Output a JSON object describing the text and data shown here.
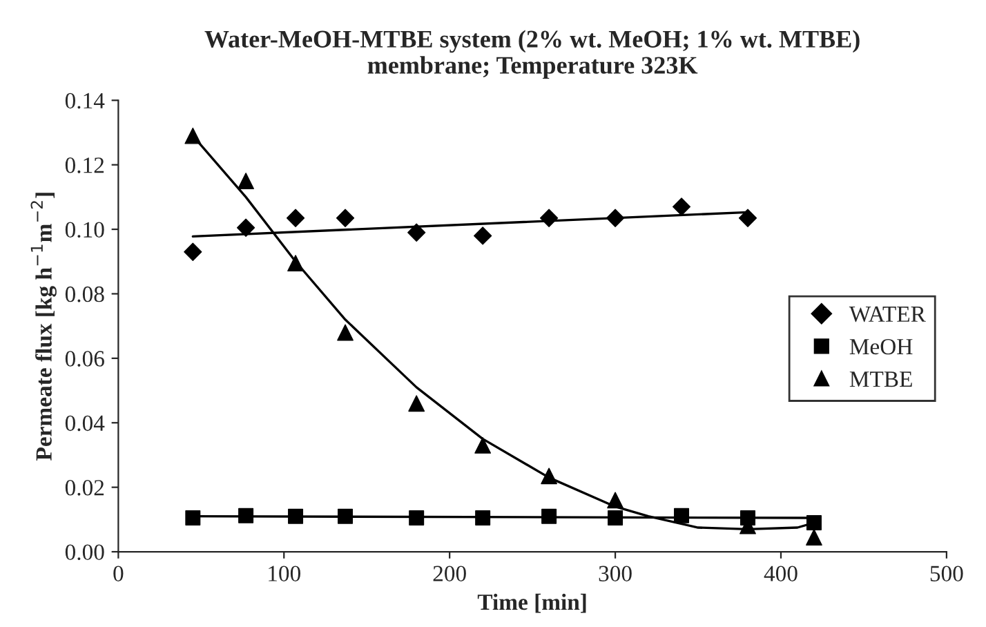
{
  "chart_data": {
    "type": "scatter",
    "title": "Water-MeOH-MTBE system (2% wt. MeOH; 1% wt. MTBE)\nmembrane; Temperature 323K",
    "xlabel": "Time [min]",
    "ylabel": "Permeate flux [kg h$^{−1}$m$^{−2}$]",
    "xlim": [
      0,
      500
    ],
    "xticks": [
      0,
      100,
      200,
      300,
      400,
      500
    ],
    "ylim": [
      0,
      0.14
    ],
    "yticks": [
      {
        "value": 0,
        "label": "0.00"
      },
      {
        "value": 0.02,
        "label": "0.02"
      },
      {
        "value": 0.04,
        "label": "0.04"
      },
      {
        "value": 0.06,
        "label": "0.06"
      },
      {
        "value": 0.08,
        "label": "0.08"
      },
      {
        "value": 0.1,
        "label": "0.10"
      },
      {
        "value": 0.12,
        "label": "0.12"
      },
      {
        "value": 0.14,
        "label": "0.14"
      }
    ],
    "grid": false,
    "legend": "right",
    "series": [
      {
        "name": "WATER",
        "color": "#000000",
        "marker": "diamond",
        "x": [
          45,
          77,
          107,
          137,
          180,
          220,
          260,
          300,
          340,
          380
        ],
        "values": [
          0.093,
          0.1005,
          0.1035,
          0.1035,
          0.099,
          0.098,
          0.1035,
          0.1035,
          0.107,
          0.1035
        ]
      },
      {
        "name": "MeOH",
        "color": "#000000",
        "marker": "square",
        "x": [
          45,
          77,
          107,
          137,
          180,
          220,
          260,
          300,
          340,
          380,
          420
        ],
        "values": [
          0.0105,
          0.0112,
          0.011,
          0.011,
          0.0105,
          0.0105,
          0.011,
          0.0105,
          0.0112,
          0.0105,
          0.009
        ]
      },
      {
        "name": "MTBE",
        "color": "#000000",
        "marker": "triangle",
        "x": [
          45,
          77,
          107,
          137,
          180,
          220,
          260,
          300,
          380,
          420
        ],
        "values": [
          0.129,
          0.115,
          0.0895,
          0.068,
          0.046,
          0.033,
          0.0235,
          0.016,
          0.008,
          0.0045
        ]
      },
      {
        "type": "line",
        "color": "#000000",
        "marker": "none",
        "line_style": "solid",
        "x": [
          45,
          380
        ],
        "values": [
          0.0978,
          0.1053
        ]
      },
      {
        "type": "line",
        "color": "#000000",
        "marker": "none",
        "line_style": "solid",
        "x": [
          45,
          420
        ],
        "values": [
          0.011,
          0.0105
        ]
      },
      {
        "type": "line",
        "color": "#000000",
        "marker": "none",
        "line_style": "solid",
        "x": [
          45,
          77,
          107,
          137,
          180,
          220,
          260,
          300,
          320,
          350,
          380,
          410,
          420
        ],
        "values": [
          0.129,
          0.11,
          0.09,
          0.072,
          0.051,
          0.035,
          0.023,
          0.014,
          0.011,
          0.0075,
          0.007,
          0.0075,
          0.009
        ]
      }
    ]
  }
}
